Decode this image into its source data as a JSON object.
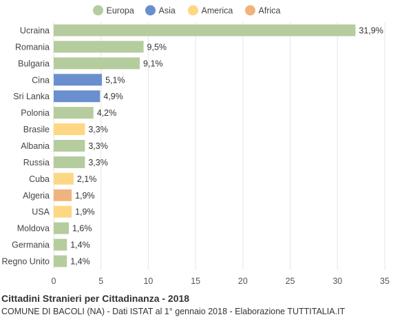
{
  "chart_data": {
    "type": "bar",
    "orientation": "horizontal",
    "categories": [
      "Ucraina",
      "Romania",
      "Bulgaria",
      "Cina",
      "Sri Lanka",
      "Polonia",
      "Brasile",
      "Albania",
      "Russia",
      "Cuba",
      "Algeria",
      "USA",
      "Moldova",
      "Germania",
      "Regno Unito"
    ],
    "values": [
      31.9,
      9.5,
      9.1,
      5.1,
      4.9,
      4.2,
      3.3,
      3.3,
      3.3,
      2.1,
      1.9,
      1.9,
      1.6,
      1.4,
      1.4
    ],
    "value_labels": [
      "31,9%",
      "9,5%",
      "9,1%",
      "5,1%",
      "4,9%",
      "4,2%",
      "3,3%",
      "3,3%",
      "3,3%",
      "2,1%",
      "1,9%",
      "1,9%",
      "1,6%",
      "1,4%",
      "1,4%"
    ],
    "continent": [
      "Europa",
      "Europa",
      "Europa",
      "Asia",
      "Asia",
      "Europa",
      "America",
      "Europa",
      "Europa",
      "America",
      "Africa",
      "America",
      "Europa",
      "Europa",
      "Europa"
    ],
    "legend": [
      {
        "name": "Europa",
        "color": "#b5cc9e"
      },
      {
        "name": "Asia",
        "color": "#6a8fcf"
      },
      {
        "name": "America",
        "color": "#fdd784"
      },
      {
        "name": "Africa",
        "color": "#f0b37e"
      }
    ],
    "legend_position": "top-center",
    "xlim": [
      0,
      35
    ],
    "xticks": [
      0,
      5,
      10,
      15,
      20,
      25,
      30,
      35
    ],
    "grid": true
  },
  "footer": {
    "title": "Cittadini Stranieri per Cittadinanza - 2018",
    "subtitle": "COMUNE DI BACOLI (NA) - Dati ISTAT al 1° gennaio 2018 - Elaborazione TUTTITALIA.IT"
  }
}
